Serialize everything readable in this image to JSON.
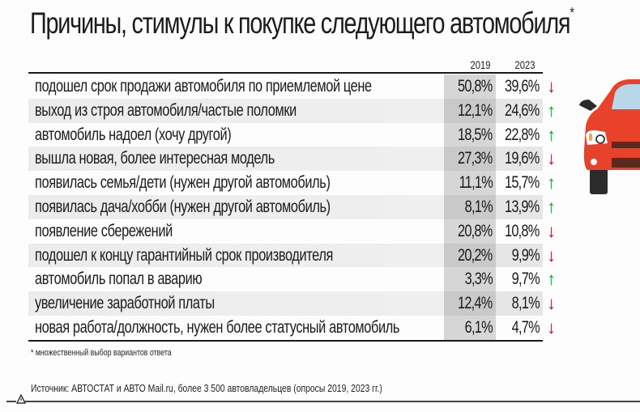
{
  "title": "Причины, стимулы к покупке следующего автомобиля",
  "title_asterisk": "*",
  "columns": {
    "y2019": "2019",
    "y2023": "2023"
  },
  "colors": {
    "up_arrow": "#1aa33a",
    "down_arrow": "#b01b25",
    "car_body": "#e8432a"
  },
  "rows": [
    {
      "label": "подошел срок продажи автомобиля по приемлемой цене",
      "v2019": "50,8%",
      "v2023": "39,6%",
      "trend": "down",
      "arrow": "↓"
    },
    {
      "label": "выход из строя автомобиля/частые поломки",
      "v2019": "12,1%",
      "v2023": "24,6%",
      "trend": "up",
      "arrow": "↑"
    },
    {
      "label": "автомобиль надоел (хочу другой)",
      "v2019": "18,5%",
      "v2023": "22,8%",
      "trend": "up",
      "arrow": "↑"
    },
    {
      "label": "вышла новая, более интересная модель",
      "v2019": "27,3%",
      "v2023": "19,6%",
      "trend": "down",
      "arrow": "↓"
    },
    {
      "label": "появилась семья/дети (нужен другой автомобиль)",
      "v2019": "11,1%",
      "v2023": "15,7%",
      "trend": "up",
      "arrow": "↑"
    },
    {
      "label": "появилась дача/хобби (нужен другой автомобиль)",
      "v2019": "8,1%",
      "v2023": "13,9%",
      "trend": "up",
      "arrow": "↑"
    },
    {
      "label": "появление сбережений",
      "v2019": "20,8%",
      "v2023": "10,8%",
      "trend": "down",
      "arrow": "↓"
    },
    {
      "label": "подошел к концу гарантийный срок производителя",
      "v2019": "20,2%",
      "v2023": "9,9%",
      "trend": "down",
      "arrow": "↓"
    },
    {
      "label": "автомобиль попал в аварию",
      "v2019": "3,3%",
      "v2023": "9,7%",
      "trend": "up",
      "arrow": "↑"
    },
    {
      "label": "увеличение заработной платы",
      "v2019": "12,4%",
      "v2023": "8,1%",
      "trend": "down",
      "arrow": "↓"
    },
    {
      "label": "новая работа/должность, нужен более статусный автомобиль",
      "v2019": "6,1%",
      "v2023": "4,7%",
      "trend": "down",
      "arrow": "↓"
    }
  ],
  "footnote": "* множественный выбор вариантов ответа",
  "source": "Источник: АВТОСТАТ и АВТО Mail.ru, более 3 500 автовладельцев (опросы 2019, 2023 гг.)",
  "chart_data": {
    "type": "table",
    "title": "Причины, стимулы к покупке следующего автомобиля*",
    "categories": [
      "подошел срок продажи автомобиля по приемлемой цене",
      "выход из строя автомобиля/частые поломки",
      "автомобиль надоел (хочу другой)",
      "вышла новая, более интересная модель",
      "появилась семья/дети (нужен другой автомобиль)",
      "появилась дача/хобби (нужен другой автомобиль)",
      "появление сбережений",
      "подошел к концу гарантийный срок производителя",
      "автомобиль попал в аварию",
      "увеличение заработной платы",
      "новая работа/должность, нужен более статусный автомобиль"
    ],
    "series": [
      {
        "name": "2019",
        "values": [
          50.8,
          12.1,
          18.5,
          27.3,
          11.1,
          8.1,
          20.8,
          20.2,
          3.3,
          12.4,
          6.1
        ]
      },
      {
        "name": "2023",
        "values": [
          39.6,
          24.6,
          22.8,
          19.6,
          15.7,
          13.9,
          10.8,
          9.9,
          9.7,
          8.1,
          4.7
        ]
      }
    ],
    "trend": [
      "down",
      "up",
      "up",
      "down",
      "up",
      "up",
      "down",
      "down",
      "up",
      "down",
      "down"
    ],
    "unit": "%",
    "footnote": "* множественный выбор вариантов ответа",
    "source": "Источник: АВТОСТАТ и АВТО Mail.ru, более 3 500 автовладельцев (опросы 2019, 2023 гг.)"
  }
}
